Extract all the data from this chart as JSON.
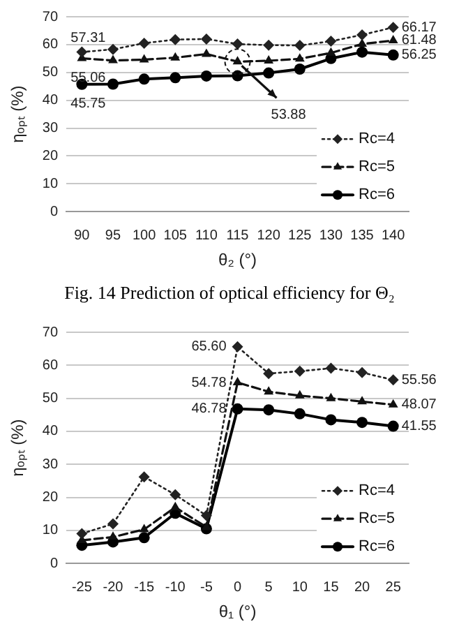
{
  "chart_data": [
    {
      "type": "line",
      "categories": [
        "90",
        "95",
        "100",
        "105",
        "110",
        "115",
        "120",
        "125",
        "130",
        "135",
        "140"
      ],
      "xlabel": "θ₂ (°)",
      "ylabel": "ηₒₚₜ (%)",
      "ylim": [
        0,
        70
      ],
      "yticks": [
        0,
        10,
        20,
        30,
        40,
        50,
        60,
        70
      ],
      "grid": "y",
      "legend": "bottom right",
      "series": [
        {
          "name": "Rc=4",
          "color": "#222222",
          "line_style": "dotted",
          "marker": "diamond",
          "values": [
            57.31,
            58.3,
            60.5,
            61.8,
            62,
            60.2,
            59.8,
            59.7,
            61.2,
            63.5,
            66.17
          ]
        },
        {
          "name": "Rc=5",
          "color": "#111111",
          "line_style": "dashed",
          "marker": "triangle",
          "values": [
            55.06,
            54.3,
            54.6,
            55.3,
            56.6,
            53.88,
            54.2,
            54.9,
            57,
            60.2,
            61.48
          ]
        },
        {
          "name": "Rc=6",
          "color": "#000000",
          "line_style": "solid",
          "marker": "circle",
          "values": [
            45.75,
            45.8,
            47.6,
            48.1,
            48.7,
            48.8,
            49.8,
            51.2,
            55,
            57.3,
            56.25
          ]
        }
      ],
      "annotations": [
        {
          "text": "57.31",
          "x": "90",
          "y": 57.31
        },
        {
          "text": "55.06",
          "x": "90",
          "y": 55.06
        },
        {
          "text": "45.75",
          "x": "90",
          "y": 45.75
        },
        {
          "text": "53.88",
          "x": "115",
          "y": 53.88
        },
        {
          "text": "66.17",
          "x": "140",
          "y": 66.17
        },
        {
          "text": "61.48",
          "x": "140",
          "y": 61.48
        },
        {
          "text": "56.25",
          "x": "140",
          "y": 56.25
        },
        "Fig. 14 Prediction of optical efficiency for Θ₂"
      ]
    },
    {
      "type": "line",
      "categories": [
        "-25",
        "-20",
        "-15",
        "-10",
        "-5",
        "0",
        "5",
        "10",
        "15",
        "20",
        "25"
      ],
      "xlabel": "θ₁ (°)",
      "ylabel": "ηₒₚₜ (%)",
      "ylim": [
        0,
        70
      ],
      "yticks": [
        0,
        10,
        20,
        30,
        40,
        50,
        60,
        70
      ],
      "grid": "y",
      "legend": "bottom right",
      "series": [
        {
          "name": "Rc=4",
          "color": "#222222",
          "line_style": "dotted",
          "marker": "diamond",
          "values": [
            9,
            12,
            26.2,
            20.8,
            14.5,
            65.6,
            57.5,
            58.2,
            59.1,
            57.8,
            55.56
          ]
        },
        {
          "name": "Rc=5",
          "color": "#111111",
          "line_style": "dashed",
          "marker": "triangle",
          "values": [
            7,
            8,
            10.3,
            17,
            11,
            54.78,
            52,
            50.8,
            50,
            49,
            48.07
          ]
        },
        {
          "name": "Rc=6",
          "color": "#000000",
          "line_style": "solid",
          "marker": "circle",
          "values": [
            5.5,
            6.5,
            7.8,
            15.2,
            10.5,
            46.78,
            46.5,
            45.3,
            43.5,
            42.7,
            41.55
          ]
        }
      ],
      "annotations": [
        {
          "text": "65.60",
          "x": "0",
          "y": 65.6
        },
        {
          "text": "54.78",
          "x": "0",
          "y": 54.78
        },
        {
          "text": "46.78",
          "x": "0",
          "y": 46.78
        },
        {
          "text": "55.56",
          "x": "25",
          "y": 55.56
        },
        {
          "text": "48.07",
          "x": "25",
          "y": 48.07
        },
        {
          "text": "41.55",
          "x": "25",
          "y": 41.55
        }
      ]
    }
  ]
}
